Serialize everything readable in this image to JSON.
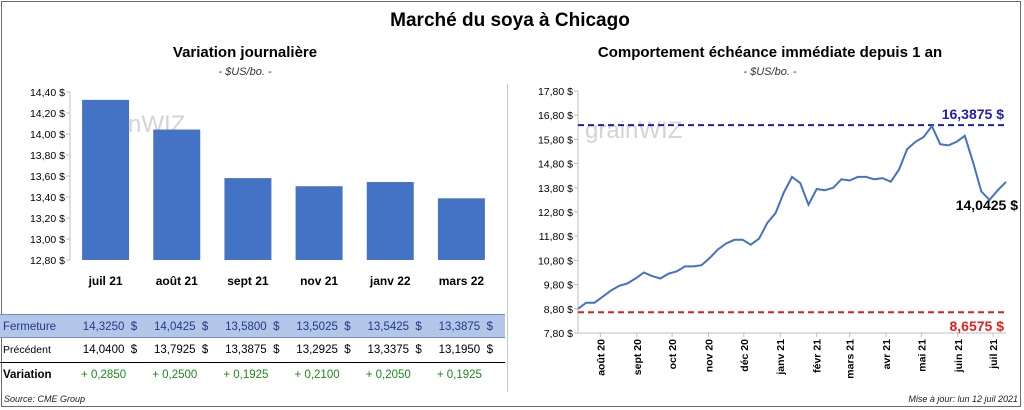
{
  "title": "Marché du soya à Chicago",
  "left_panel": {
    "subtitle": "Variation journalière",
    "unit": "- $US/bo. -",
    "watermark": "grainWIZ"
  },
  "right_panel": {
    "subtitle": "Comportement  échéance immédiate depuis 1 an",
    "unit": "- $US/bo. -",
    "watermark": "grainWIZ",
    "annotation_high": "16,3875 $",
    "annotation_low": "8,6575 $",
    "annotation_last": "14,0425 $"
  },
  "table": {
    "rows": [
      {
        "label": "Fermeture",
        "values": [
          "14,3250  $",
          "14,0425  $",
          "13,5800  $",
          "13,5025  $",
          "13,5425  $",
          "13,3875  $"
        ]
      },
      {
        "label": "Précédent",
        "values": [
          "14,0400  $",
          "13,7925  $",
          "13,3875  $",
          "13,2925  $",
          "13,3375  $",
          "13,1950  $"
        ]
      },
      {
        "label": "Variation",
        "values": [
          "+ 0,2850",
          "+ 0,2500",
          "+ 0,1925",
          "+ 0,2100",
          "+ 0,2050",
          "+ 0,1925"
        ]
      }
    ]
  },
  "footer": {
    "source": "Source: CME Group",
    "updated": "Mise à jour: lun 12 juil 2021"
  },
  "colors": {
    "bar": "#4472c4",
    "line": "#4472c4",
    "high_line": "#1f1fa8",
    "low_line": "#e02020",
    "variation_positive": "#1a8a1a",
    "table_highlight": "#b4c6e7"
  },
  "chart_data": [
    {
      "type": "bar",
      "title": "Variation journalière",
      "categories": [
        "juil 21",
        "août 21",
        "sept 21",
        "nov 21",
        "janv 22",
        "mars 22"
      ],
      "values": [
        14.325,
        14.0425,
        13.58,
        13.5025,
        13.5425,
        13.3875
      ],
      "ylim": [
        12.8,
        14.4
      ],
      "yticks": [
        12.8,
        13.0,
        13.2,
        13.4,
        13.6,
        13.8,
        14.0,
        14.2,
        14.4
      ],
      "ytick_labels": [
        "12,80 $",
        "13,00 $",
        "13,20 $",
        "13,40 $",
        "13,60 $",
        "13,80 $",
        "14,00 $",
        "14,20 $",
        "14,40 $"
      ],
      "grid": false
    },
    {
      "type": "line",
      "title": "Comportement  échéance immédiate depuis 1 an",
      "x_labels": [
        "août 20",
        "sept 20",
        "oct 20",
        "nov 20",
        "déc 20",
        "janv 21",
        "févr 21",
        "mars 21",
        "avr 21",
        "mai 21",
        "juin 21",
        "juil 21"
      ],
      "x_start": "2020-07-13",
      "x_end": "2021-07-12",
      "x_label_dates": [
        "2020-08-01",
        "2020-09-01",
        "2020-10-01",
        "2020-11-01",
        "2020-12-01",
        "2021-01-01",
        "2021-02-01",
        "2021-03-01",
        "2021-04-01",
        "2021-05-01",
        "2021-06-01",
        "2021-07-01"
      ],
      "ylim": [
        7.8,
        17.8
      ],
      "yticks": [
        7.8,
        8.8,
        9.8,
        10.8,
        11.8,
        12.8,
        13.8,
        14.8,
        15.8,
        16.8,
        17.8
      ],
      "ytick_labels": [
        "7,80 $",
        "8,80 $",
        "9,80 $",
        "10,80 $",
        "11,80 $",
        "12,80 $",
        "13,80 $",
        "14,80 $",
        "15,80 $",
        "16,80 $",
        "17,80 $"
      ],
      "high": 16.3875,
      "low": 8.6575,
      "last": 14.0425,
      "series": [
        {
          "dates": [
            "2020-07-13",
            "2020-07-20",
            "2020-07-27",
            "2020-08-03",
            "2020-08-10",
            "2020-08-17",
            "2020-08-24",
            "2020-08-31",
            "2020-09-07",
            "2020-09-14",
            "2020-09-21",
            "2020-09-28",
            "2020-10-05",
            "2020-10-12",
            "2020-10-19",
            "2020-10-26",
            "2020-11-02",
            "2020-11-09",
            "2020-11-16",
            "2020-11-23",
            "2020-11-30",
            "2020-12-07",
            "2020-12-14",
            "2020-12-21",
            "2020-12-28",
            "2021-01-04",
            "2021-01-11",
            "2021-01-18",
            "2021-01-25",
            "2021-02-01",
            "2021-02-08",
            "2021-02-15",
            "2021-02-22",
            "2021-03-01",
            "2021-03-08",
            "2021-03-15",
            "2021-03-22",
            "2021-03-29",
            "2021-04-05",
            "2021-04-12",
            "2021-04-19",
            "2021-04-26",
            "2021-05-03",
            "2021-05-10",
            "2021-05-17",
            "2021-05-24",
            "2021-05-31",
            "2021-06-07",
            "2021-06-14",
            "2021-06-21",
            "2021-06-28",
            "2021-07-05",
            "2021-07-12"
          ],
          "values": [
            8.8,
            9.05,
            9.05,
            9.3,
            9.55,
            9.75,
            9.85,
            10.05,
            10.3,
            10.15,
            10.05,
            10.25,
            10.35,
            10.55,
            10.55,
            10.6,
            10.9,
            11.25,
            11.5,
            11.65,
            11.65,
            11.45,
            11.7,
            12.35,
            12.75,
            13.6,
            14.25,
            14.0,
            13.1,
            13.75,
            13.7,
            13.8,
            14.15,
            14.1,
            14.25,
            14.25,
            14.15,
            14.2,
            14.05,
            14.55,
            15.4,
            15.7,
            15.9,
            16.35,
            15.6,
            15.55,
            15.7,
            15.95,
            14.85,
            13.65,
            13.3,
            13.7,
            14.0425
          ]
        }
      ]
    }
  ]
}
